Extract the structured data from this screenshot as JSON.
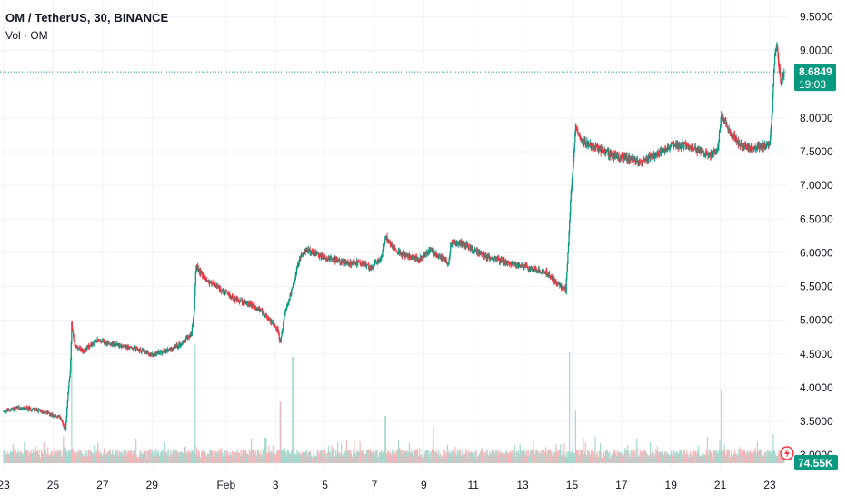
{
  "header": {
    "symbol_line": "OM / TetherUS, 30, BINANCE",
    "volume_line": "Vol · OM"
  },
  "price_badge": {
    "value": "8.6849",
    "countdown": "19:03",
    "color": "#089981"
  },
  "volume_badge": {
    "value": "74.55K",
    "color": "#089981"
  },
  "colors": {
    "up": "#089981",
    "down": "#f23645",
    "vol_up": "#a7d8cf",
    "vol_down": "#f7b5b9",
    "last_line": "#089981"
  },
  "chart_data": {
    "type": "candlestick",
    "title": "OM / TetherUS, 30, BINANCE",
    "ylim": [
      2.8,
      9.75
    ],
    "y_ticks": [
      "9.5000",
      "9.0000",
      "8.5000",
      "8.0000",
      "7.5000",
      "7.0000",
      "6.5000",
      "6.0000",
      "5.5000",
      "5.0000",
      "4.5000",
      "4.0000",
      "3.5000",
      "3.0000"
    ],
    "x_ticks": [
      "23",
      "25",
      "27",
      "29",
      "Feb",
      "3",
      "5",
      "7",
      "9",
      "11",
      "13",
      "15",
      "17",
      "19",
      "21",
      "23"
    ],
    "x_tick_days": [
      0,
      2,
      4,
      6,
      9,
      11,
      13,
      15,
      17,
      19,
      21,
      23,
      25,
      27,
      29,
      31
    ],
    "day_range": [
      -0.15,
      31.7
    ],
    "last_price": 8.6849,
    "price_path": [
      [
        0.0,
        3.65
      ],
      [
        0.6,
        3.7
      ],
      [
        1.2,
        3.68
      ],
      [
        1.8,
        3.62
      ],
      [
        2.3,
        3.55
      ],
      [
        2.5,
        3.35
      ],
      [
        2.6,
        3.9
      ],
      [
        2.7,
        4.3
      ],
      [
        2.75,
        4.95
      ],
      [
        2.85,
        4.65
      ],
      [
        3.2,
        4.55
      ],
      [
        3.8,
        4.7
      ],
      [
        4.4,
        4.65
      ],
      [
        5.0,
        4.6
      ],
      [
        5.6,
        4.55
      ],
      [
        6.0,
        4.48
      ],
      [
        6.6,
        4.55
      ],
      [
        7.2,
        4.65
      ],
      [
        7.6,
        4.8
      ],
      [
        7.7,
        5.1
      ],
      [
        7.78,
        5.8
      ],
      [
        8.2,
        5.6
      ],
      [
        8.8,
        5.45
      ],
      [
        9.4,
        5.3
      ],
      [
        9.9,
        5.25
      ],
      [
        10.4,
        5.15
      ],
      [
        10.8,
        5.0
      ],
      [
        11.1,
        4.85
      ],
      [
        11.2,
        4.65
      ],
      [
        11.35,
        5.05
      ],
      [
        11.7,
        5.5
      ],
      [
        12.0,
        5.95
      ],
      [
        12.3,
        6.05
      ],
      [
        12.8,
        5.95
      ],
      [
        13.4,
        5.9
      ],
      [
        13.9,
        5.85
      ],
      [
        14.4,
        5.85
      ],
      [
        14.9,
        5.78
      ],
      [
        15.3,
        5.95
      ],
      [
        15.45,
        6.25
      ],
      [
        15.8,
        6.05
      ],
      [
        16.3,
        5.95
      ],
      [
        16.8,
        5.9
      ],
      [
        17.3,
        6.05
      ],
      [
        17.6,
        5.95
      ],
      [
        18.0,
        5.85
      ],
      [
        18.1,
        6.15
      ],
      [
        18.5,
        6.15
      ],
      [
        19.0,
        6.05
      ],
      [
        19.5,
        5.95
      ],
      [
        20.0,
        5.9
      ],
      [
        20.5,
        5.85
      ],
      [
        21.0,
        5.8
      ],
      [
        21.5,
        5.75
      ],
      [
        22.0,
        5.7
      ],
      [
        22.4,
        5.55
      ],
      [
        22.75,
        5.45
      ],
      [
        22.85,
        6.1
      ],
      [
        22.95,
        6.85
      ],
      [
        23.05,
        7.35
      ],
      [
        23.15,
        7.9
      ],
      [
        23.4,
        7.65
      ],
      [
        24.0,
        7.55
      ],
      [
        24.6,
        7.45
      ],
      [
        25.2,
        7.4
      ],
      [
        25.8,
        7.35
      ],
      [
        26.4,
        7.45
      ],
      [
        27.0,
        7.6
      ],
      [
        27.6,
        7.6
      ],
      [
        28.2,
        7.5
      ],
      [
        28.6,
        7.45
      ],
      [
        28.9,
        7.55
      ],
      [
        29.05,
        8.05
      ],
      [
        29.4,
        7.8
      ],
      [
        29.8,
        7.6
      ],
      [
        30.3,
        7.55
      ],
      [
        30.8,
        7.6
      ],
      [
        31.0,
        7.6
      ],
      [
        31.1,
        8.1
      ],
      [
        31.2,
        8.9
      ],
      [
        31.3,
        9.05
      ],
      [
        31.45,
        8.5
      ],
      [
        31.6,
        8.68
      ]
    ],
    "volume_spikes": [
      {
        "day": 2.75,
        "level": 0.9
      },
      {
        "day": 7.75,
        "level": 1.0
      },
      {
        "day": 11.2,
        "level": 0.52
      },
      {
        "day": 11.7,
        "level": 0.9
      },
      {
        "day": 15.45,
        "level": 0.4
      },
      {
        "day": 17.4,
        "level": 0.3
      },
      {
        "day": 22.9,
        "level": 0.94
      },
      {
        "day": 23.15,
        "level": 0.45
      },
      {
        "day": 29.05,
        "level": 0.62
      },
      {
        "day": 31.15,
        "level": 0.25
      }
    ],
    "volume_scale_max": 74550
  }
}
